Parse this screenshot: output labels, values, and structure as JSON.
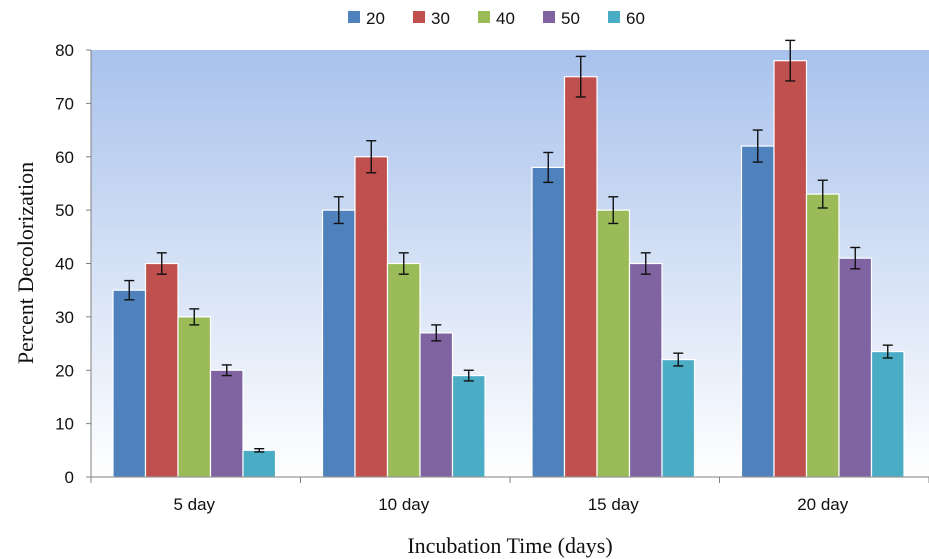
{
  "chart_data": {
    "type": "bar",
    "title": "",
    "xlabel": "Incubation Time (days)",
    "ylabel": "Percent Decolorization",
    "ylim": [
      0,
      80
    ],
    "yticks": [
      0,
      10,
      20,
      30,
      40,
      50,
      60,
      70,
      80
    ],
    "grid": false,
    "legend_position": "top-center",
    "categories": [
      "5 day",
      "10 day",
      "15 day",
      "20 day"
    ],
    "series": [
      {
        "name": "20",
        "color": "#4f81bd",
        "values": [
          35,
          50,
          58,
          62
        ],
        "errors": [
          1.8,
          2.5,
          2.8,
          3.0
        ]
      },
      {
        "name": "30",
        "color": "#c0504d",
        "values": [
          40,
          60,
          75,
          78
        ],
        "errors": [
          2.0,
          3.0,
          3.8,
          3.8
        ]
      },
      {
        "name": "40",
        "color": "#9bbb59",
        "values": [
          30,
          40,
          50,
          53
        ],
        "errors": [
          1.5,
          2.0,
          2.5,
          2.6
        ]
      },
      {
        "name": "50",
        "color": "#8064a2",
        "values": [
          20,
          27,
          40,
          41
        ],
        "errors": [
          1.0,
          1.5,
          2.0,
          2.0
        ]
      },
      {
        "name": "60",
        "color": "#4bacc6",
        "values": [
          5,
          19,
          22,
          23.5
        ],
        "errors": [
          0.3,
          1.0,
          1.2,
          1.2
        ]
      }
    ]
  }
}
